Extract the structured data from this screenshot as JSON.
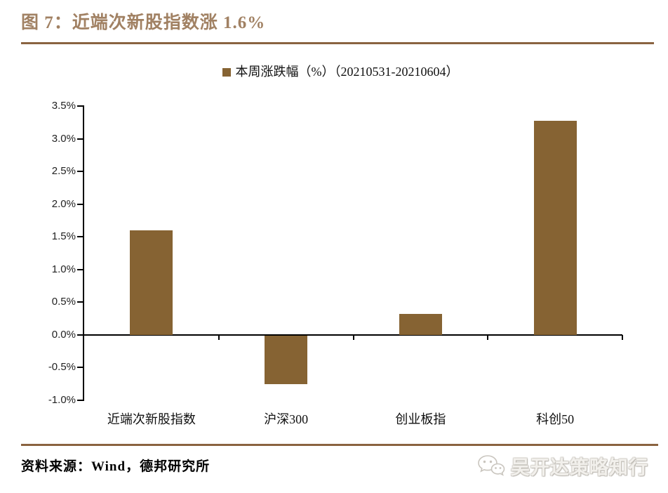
{
  "figure": {
    "title": "图 7：近端次新股指数涨 1.6%",
    "source": "资料来源：Wind，德邦研究所",
    "watermark": "吴开达策略知行"
  },
  "chart_data": {
    "type": "bar",
    "legend": "本周涨跌幅（%）（20210531-20210604）",
    "categories": [
      "近端次新股指数",
      "沪深300",
      "创业板指",
      "科创50"
    ],
    "values": [
      1.6,
      -0.74,
      0.32,
      3.28
    ],
    "title": "",
    "xlabel": "",
    "ylabel": "",
    "ylim": [
      -1.0,
      3.5
    ],
    "ytick_step": 0.5,
    "ytick_labels": [
      "3.5%",
      "3.0%",
      "2.5%",
      "2.0%",
      "1.5%",
      "1.0%",
      "0.5%",
      "0.0%",
      "-0.5%",
      "-1.0%"
    ],
    "grid": false,
    "legend_position": "top-center",
    "bar_color": "#866333"
  },
  "colors": {
    "bar_brown": "#866333",
    "rule_brown": "#8a6340",
    "title_brown": "#a18163",
    "axis_black": "#000000",
    "watermark_gray": "#cfccc6"
  }
}
